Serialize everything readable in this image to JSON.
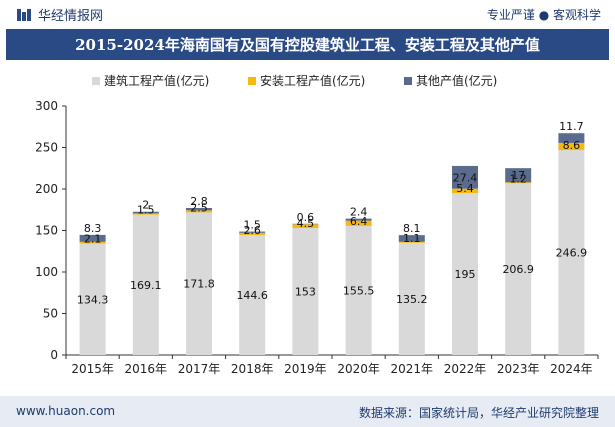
{
  "header": {
    "brand": "华经情报网",
    "slogan": "专业严谨 ● 客观科学"
  },
  "footer": {
    "website": "www.huaon.com",
    "source": "数据来源：国家统计局，华经产业研究院整理"
  },
  "chart_data": {
    "type": "bar",
    "stacked": true,
    "title": "2015-2024年海南国有及国有控股建筑业工程、安装工程及其他产值",
    "categories": [
      "2015年",
      "2016年",
      "2017年",
      "2018年",
      "2019年",
      "2020年",
      "2021年",
      "2022年",
      "2023年",
      "2024年"
    ],
    "series": [
      {
        "name": "建筑工程产值(亿元)",
        "color": "#d9d9d9",
        "values": [
          134.3,
          169.1,
          171.8,
          144.6,
          153,
          155.5,
          135.2,
          195,
          206.9,
          246.9
        ]
      },
      {
        "name": "安装工程产值(亿元)",
        "color": "#f5b90f",
        "values": [
          2.1,
          1.5,
          2.5,
          2.6,
          4.5,
          6.4,
          1.1,
          5.4,
          1.2,
          8.6
        ]
      },
      {
        "name": "其他产值(亿元)",
        "color": "#5b6b8e",
        "values": [
          8.3,
          2,
          2.8,
          1.5,
          0.6,
          2.4,
          8.1,
          27.4,
          17,
          11.7
        ]
      }
    ],
    "ylim": [
      0,
      300
    ],
    "yticks": [
      0,
      50,
      100,
      150,
      200,
      250,
      300
    ],
    "legend_position": "top",
    "grid": false
  }
}
